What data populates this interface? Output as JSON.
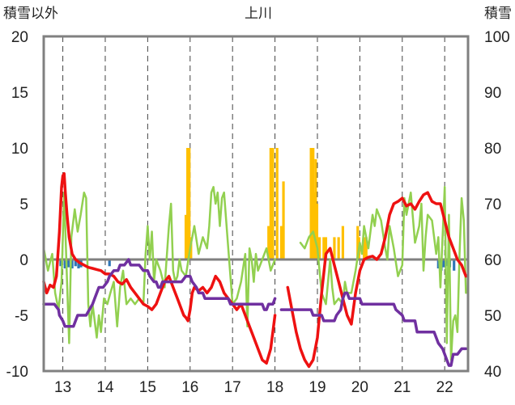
{
  "chart_data": {
    "type": "bar+line",
    "title": "上川",
    "left_axis_label": "積雪以外",
    "right_axis_label": "積雪",
    "left_ylim": [
      -10,
      20
    ],
    "right_ylim": [
      40,
      100
    ],
    "left_ticks": [
      "20",
      "15",
      "10",
      "5",
      "0",
      "-5",
      "-10"
    ],
    "right_ticks": [
      "100",
      "90",
      "80",
      "70",
      "60",
      "50",
      "40"
    ],
    "x_ticks": [
      "13",
      "14",
      "15",
      "16",
      "17",
      "18",
      "19",
      "20",
      "21",
      "22"
    ],
    "xlim": [
      12.55,
      22.55
    ],
    "grid": {
      "x": "dashed",
      "y": "none"
    },
    "colors": {
      "red": "#ee1111",
      "green": "#92d050",
      "purple": "#7030a0",
      "orange_bar": "#ffc000",
      "blue_bar": "#2e75b6",
      "zero_line": "#808080",
      "frame": "#808080"
    },
    "series": [
      {
        "color_key": "red",
        "axis": "left",
        "x": [
          12.55,
          12.62,
          12.7,
          12.78,
          12.85,
          12.92,
          12.97,
          13.0,
          13.03,
          13.06,
          13.1,
          13.15,
          13.22,
          13.3,
          13.4,
          13.5,
          13.6,
          13.7,
          13.8,
          13.9,
          14.0,
          14.1,
          14.2,
          14.3,
          14.4,
          14.5,
          14.6,
          14.7,
          14.8,
          14.9,
          15.0,
          15.1,
          15.2,
          15.3,
          15.4,
          15.5,
          15.6,
          15.7,
          15.8,
          15.85,
          15.9,
          15.95,
          16.0,
          16.05,
          16.1,
          16.2,
          16.3,
          16.4,
          16.5,
          16.6,
          16.7,
          16.8,
          16.9,
          17.0,
          17.1,
          17.2,
          17.3,
          17.4,
          17.5,
          17.6,
          17.7,
          17.8,
          17.9,
          18.0
        ],
        "values": [
          -2.0,
          -3.0,
          -2.3,
          -2.5,
          -1.5,
          2.5,
          6.5,
          7.5,
          7.7,
          6.0,
          4.0,
          2.0,
          0.5,
          0.0,
          -0.3,
          -0.5,
          -0.7,
          -0.8,
          -0.9,
          -1.0,
          -1.3,
          -1.3,
          -1.5,
          -2.0,
          -2.2,
          -1.8,
          -2.5,
          -3.0,
          -3.5,
          -4.0,
          -4.2,
          -4.5,
          -4.0,
          -3.0,
          -2.0,
          -1.5,
          -2.5,
          -3.5,
          -4.5,
          -5.0,
          -5.2,
          -5.5,
          -4.5,
          -3.0,
          -2.5,
          -2.8,
          -2.5,
          -3.0,
          -2.5,
          -1.5,
          -2.0,
          -3.0,
          -3.5,
          -4.0,
          -4.5,
          -4.0,
          -5.0,
          -6.0,
          -7.0,
          -8.0,
          -9.0,
          -9.3,
          -8.0,
          -5.0
        ]
      },
      {
        "color_key": "red",
        "axis": "left",
        "x": [
          18.3,
          18.4,
          18.5,
          18.6,
          18.7,
          18.8,
          18.9,
          19.0,
          19.1,
          19.2,
          19.3,
          19.4,
          19.5,
          19.6,
          19.7,
          19.8,
          19.9,
          20.0,
          20.1,
          20.2,
          20.3,
          20.4,
          20.5,
          20.6,
          20.7,
          20.8,
          20.9,
          21.0,
          21.1,
          21.2,
          21.3,
          21.4,
          21.5,
          21.6,
          21.7,
          21.8,
          21.9,
          22.0,
          22.1,
          22.2,
          22.3,
          22.4,
          22.5
        ],
        "values": [
          -2.5,
          -4.5,
          -6.5,
          -8.0,
          -9.0,
          -9.6,
          -9.0,
          -7.0,
          -3.0,
          0.5,
          1.0,
          -0.5,
          -2.0,
          -3.5,
          -5.0,
          -5.8,
          -3.0,
          -1.0,
          0.0,
          0.2,
          0.3,
          0.0,
          0.5,
          2.0,
          4.0,
          5.0,
          5.2,
          5.5,
          4.8,
          5.0,
          4.5,
          5.2,
          5.8,
          6.0,
          5.2,
          5.0,
          5.0,
          3.5,
          2.0,
          1.0,
          0.0,
          -0.5,
          -1.5
        ]
      },
      {
        "color_key": "green",
        "axis": "left",
        "x": [
          12.55,
          12.65,
          12.75,
          12.82,
          12.9,
          12.97,
          13.03,
          13.1,
          13.15,
          13.2,
          13.28,
          13.35,
          13.42,
          13.5,
          13.55,
          13.6,
          13.65,
          13.7,
          13.75,
          13.8,
          13.85,
          13.9,
          13.97,
          14.05,
          14.12,
          14.2,
          14.28,
          14.35,
          14.42,
          14.5,
          14.6,
          14.7,
          14.8,
          14.9,
          14.95,
          15.0,
          15.05,
          15.1,
          15.15,
          15.2,
          15.3,
          15.4,
          15.5,
          15.55,
          15.6,
          15.65,
          15.7,
          15.75,
          15.8,
          15.9,
          16.0,
          16.1,
          16.2,
          16.3,
          16.4,
          16.45,
          16.5,
          16.55,
          16.6,
          16.65,
          16.7,
          16.75,
          16.8,
          16.9,
          17.0,
          17.1,
          17.2,
          17.3,
          17.35,
          17.4,
          17.45,
          17.5,
          17.55,
          17.6,
          17.7,
          17.8,
          17.9,
          18.0
        ],
        "values": [
          1.0,
          -1.0,
          0.5,
          -3.0,
          -4.5,
          -2.0,
          6.0,
          -2.0,
          -7.5,
          2.0,
          4.5,
          2.5,
          4.0,
          6.0,
          5.5,
          -4.0,
          -6.0,
          -4.0,
          -5.5,
          -7.0,
          -5.0,
          -6.5,
          -3.5,
          -4.0,
          -3.0,
          -2.0,
          -6.0,
          -2.5,
          -1.0,
          -4.0,
          -3.5,
          -4.0,
          -3.5,
          -4.0,
          0.5,
          3.0,
          0.0,
          2.5,
          -2.0,
          0.0,
          -1.0,
          -2.5,
          3.0,
          5.0,
          -1.0,
          -2.0,
          -1.5,
          0.0,
          -1.0,
          -1.5,
          1.0,
          3.0,
          0.5,
          2.0,
          1.0,
          3.0,
          6.0,
          6.5,
          5.0,
          6.0,
          3.0,
          5.5,
          6.0,
          1.0,
          -4.0,
          -3.5,
          -2.0,
          0.5,
          -6.0,
          1.0,
          0.0,
          -2.0,
          0.5,
          -1.0,
          0.0,
          1.0,
          -1.0,
          0.0
        ]
      },
      {
        "color_key": "green",
        "axis": "left",
        "x": [
          18.6,
          18.7,
          18.8,
          18.9,
          19.0,
          19.05,
          19.1,
          19.2,
          19.3,
          19.35,
          19.4,
          19.5,
          19.6,
          19.65,
          19.7,
          19.8,
          19.9,
          20.0,
          20.05,
          20.1,
          20.2,
          20.3,
          20.35,
          20.4,
          20.5,
          20.6,
          20.65,
          20.7,
          20.8,
          20.9,
          21.0,
          21.05,
          21.1,
          21.2,
          21.3,
          21.4,
          21.45,
          21.5,
          21.55,
          21.6,
          21.7,
          21.8,
          21.85,
          21.9,
          22.0,
          22.05,
          22.1,
          22.15,
          22.2,
          22.25,
          22.3,
          22.35,
          22.4,
          22.45,
          22.5
        ],
        "values": [
          1.5,
          1.0,
          2.0,
          2.5,
          1.0,
          -1.0,
          -3.0,
          -4.0,
          0.0,
          -2.5,
          -4.0,
          -3.5,
          -4.0,
          -2.0,
          -3.0,
          -3.0,
          -1.0,
          1.5,
          0.5,
          3.0,
          1.0,
          4.0,
          3.0,
          4.5,
          3.5,
          1.0,
          0.0,
          3.0,
          1.0,
          -1.5,
          -0.5,
          5.5,
          4.0,
          6.0,
          1.5,
          3.0,
          5.0,
          -1.0,
          2.0,
          4.0,
          3.5,
          0.5,
          2.0,
          -2.5,
          6.5,
          -7.5,
          4.0,
          -9.0,
          -5.5,
          -5.0,
          -6.5,
          0.5,
          5.5,
          3.5,
          -3.0
        ]
      },
      {
        "color_key": "purple",
        "axis": "right",
        "x": [
          12.55,
          12.8,
          12.9,
          12.92,
          13.0,
          13.05,
          13.15,
          13.25,
          13.3,
          13.35,
          13.45,
          13.55,
          13.7,
          13.75,
          13.8,
          13.85,
          13.95,
          14.05,
          14.1,
          14.2,
          14.3,
          14.35,
          14.45,
          14.55,
          14.6,
          14.75,
          14.8,
          14.9,
          14.95,
          15.0,
          15.05,
          15.15,
          15.2,
          15.25,
          15.3,
          15.35,
          15.45,
          15.8,
          15.9,
          16.0,
          16.05,
          16.15,
          16.2,
          16.3,
          16.35,
          16.9,
          16.95,
          17.7,
          17.75,
          17.8,
          17.85,
          17.95,
          18.0
        ],
        "values": [
          52,
          52,
          51,
          50,
          49,
          48,
          48,
          48,
          49,
          50,
          50,
          50,
          52,
          53,
          54,
          55,
          55,
          56,
          57,
          58,
          58,
          59,
          59,
          60,
          59,
          59,
          59,
          58,
          58,
          58,
          57,
          56,
          56,
          55,
          55,
          56,
          56,
          56,
          57,
          57,
          56,
          55,
          54,
          54,
          53,
          53,
          52,
          52,
          51,
          51,
          52,
          52,
          53
        ]
      },
      {
        "color_key": "purple",
        "axis": "right",
        "x": [
          18.15,
          18.85,
          18.9,
          19.1,
          19.15,
          19.4,
          19.45,
          19.55,
          19.6,
          19.65,
          19.7,
          19.75,
          20.0,
          20.05,
          20.8,
          20.85,
          21.0,
          21.05,
          21.3,
          21.35,
          21.75,
          21.8,
          21.85,
          21.95,
          22.0,
          22.05,
          22.1,
          22.15,
          22.2,
          22.3,
          22.4,
          22.5
        ],
        "values": [
          51,
          51,
          50,
          50,
          49,
          49,
          50,
          51,
          53,
          54,
          54,
          53,
          53,
          52,
          52,
          51,
          50,
          49,
          49,
          47,
          47,
          46,
          45,
          44,
          43,
          42,
          41,
          41,
          43,
          43,
          44,
          44
        ]
      }
    ],
    "bars": [
      {
        "color_key": "orange_bar",
        "axis": "left",
        "x": [
          15.9,
          15.94,
          15.98,
          16.02,
          17.85,
          17.9,
          17.95,
          18.05,
          18.15,
          18.2,
          18.85,
          18.88,
          18.9,
          18.92,
          18.96,
          18.99,
          19.05,
          19.15,
          19.2,
          19.4,
          19.5,
          19.6,
          19.95,
          19.98,
          20.1,
          20.15
        ],
        "values": [
          4.0,
          10.0,
          10.0,
          2.0,
          3.0,
          10.0,
          10.0,
          10.0,
          3.0,
          7.0,
          10.0,
          8.0,
          10.0,
          6.0,
          9.0,
          5.0,
          2.0,
          2.0,
          2.0,
          2.0,
          2.0,
          3.0,
          3.0,
          2.0,
          2.0,
          2.0
        ]
      },
      {
        "color_key": "blue_bar",
        "axis": "left",
        "x": [
          12.95,
          13.05,
          13.13,
          13.22,
          13.3,
          13.37,
          13.43,
          14.1,
          21.85,
          21.92,
          21.98,
          22.05,
          22.12,
          22.22
        ],
        "values": [
          -0.6,
          -0.8,
          -0.7,
          -0.8,
          -0.6,
          -0.8,
          -0.7,
          -0.6,
          -0.8,
          -1.0,
          -0.7,
          -0.6,
          -0.7,
          -1.0
        ]
      }
    ]
  }
}
